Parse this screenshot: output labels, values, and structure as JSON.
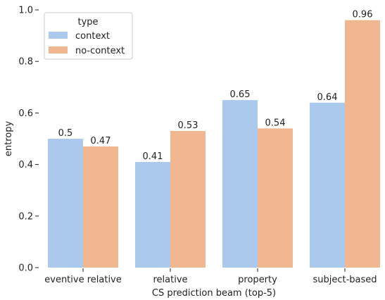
{
  "chart_data": {
    "type": "bar",
    "xlabel": "CS prediction beam (top-5)",
    "ylabel": "entropy",
    "ylim": [
      0,
      1.0
    ],
    "yticks": [
      "0.0",
      "0.2",
      "0.4",
      "0.6",
      "0.8",
      "1.0"
    ],
    "categories": [
      "eventive relative",
      "relative",
      "property",
      "subject-based"
    ],
    "series": [
      {
        "name": "context",
        "color": "#abc9ed",
        "values": [
          0.5,
          0.41,
          0.65,
          0.64
        ],
        "labels": [
          "0.5",
          "0.41",
          "0.65",
          "0.64"
        ]
      },
      {
        "name": "no-context",
        "color": "#f0b68f",
        "values": [
          0.47,
          0.53,
          0.54,
          0.96
        ],
        "labels": [
          "0.47",
          "0.53",
          "0.54",
          "0.96"
        ]
      }
    ],
    "legend": {
      "title": "type",
      "position": "top-left"
    },
    "grid": false
  }
}
